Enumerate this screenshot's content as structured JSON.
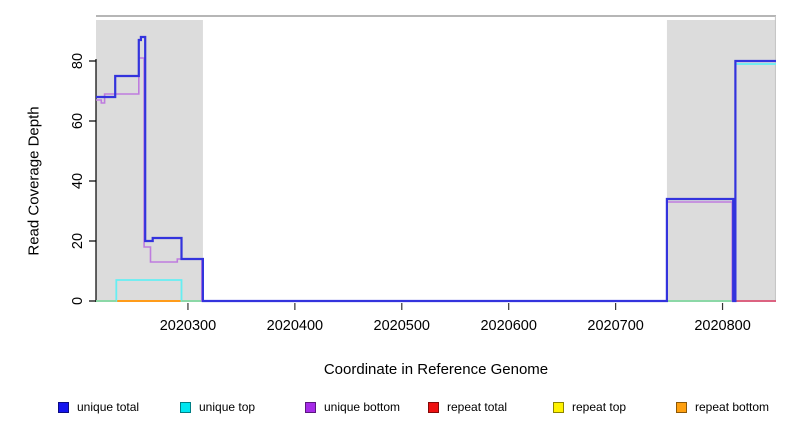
{
  "chart_data": {
    "type": "line",
    "subtype": "step-coverage",
    "title": "",
    "xlabel": "Coordinate in Reference Genome",
    "ylabel": "Read Coverage Depth",
    "xlim": [
      2020214,
      2020850
    ],
    "ylim": [
      0,
      95
    ],
    "x_ticks": [
      2020300,
      2020400,
      2020500,
      2020600,
      2020700,
      2020800
    ],
    "y_ticks": [
      0,
      20,
      40,
      60,
      80
    ],
    "grid": false,
    "shade_color": "#DCDCDC",
    "shaded_regions": [
      {
        "from": 2020214,
        "to": 2020314
      },
      {
        "from": 2020748,
        "to": 2020850
      }
    ],
    "series": [
      {
        "name": "repeat top",
        "color": "#F2E636",
        "width": 1.4,
        "paths": [
          [
            [
              2020233,
              0
            ],
            [
              2020294,
              0
            ]
          ]
        ]
      },
      {
        "name": "repeat bottom",
        "color": "#FF9C1A",
        "width": 2,
        "paths": [
          [
            [
              2020233,
              0
            ],
            [
              2020294,
              0
            ]
          ]
        ]
      },
      {
        "name": "unique top",
        "color": "#66EEF2",
        "width": 1.8,
        "paths": [
          [
            [
              2020214,
              0
            ],
            [
              2020233,
              0
            ],
            [
              2020233,
              7
            ],
            [
              2020294,
              7
            ],
            [
              2020294,
              0
            ],
            [
              2020812,
              0
            ],
            [
              2020812,
              79
            ],
            [
              2020850,
              79
            ]
          ]
        ]
      },
      {
        "name": "green zero segments",
        "color": "#90D290",
        "width": 1.6,
        "paths": [
          [
            [
              2020214,
              0
            ],
            [
              2020233,
              0
            ]
          ],
          [
            [
              2020294,
              0
            ],
            [
              2020314,
              0
            ]
          ],
          [
            [
              2020748,
              0
            ],
            [
              2020811,
              0
            ]
          ]
        ]
      },
      {
        "name": "unique bottom",
        "color": "#BE7CDE",
        "width": 1.6,
        "paths": [
          [
            [
              2020214,
              67
            ],
            [
              2020219,
              67
            ],
            [
              2020219,
              66
            ],
            [
              2020222,
              66
            ],
            [
              2020222,
              69
            ],
            [
              2020254,
              69
            ],
            [
              2020254,
              81
            ],
            [
              2020259,
              81
            ],
            [
              2020259,
              18
            ],
            [
              2020265,
              18
            ],
            [
              2020265,
              13
            ],
            [
              2020290,
              13
            ],
            [
              2020290,
              14
            ],
            [
              2020313,
              14
            ],
            [
              2020313,
              0
            ],
            [
              2020748,
              0
            ],
            [
              2020748,
              33
            ],
            [
              2020809,
              33
            ],
            [
              2020809,
              0
            ],
            [
              2020850,
              0
            ]
          ]
        ]
      },
      {
        "name": "repeat total",
        "color": "#E24B63",
        "width": 1.6,
        "paths": [
          [
            [
              2020810,
              0
            ],
            [
              2020850,
              0
            ]
          ]
        ]
      },
      {
        "name": "unique total",
        "color": "#3333DD",
        "width": 2.2,
        "paths": [
          [
            [
              2020214,
              68
            ],
            [
              2020232,
              68
            ],
            [
              2020232,
              75
            ],
            [
              2020254,
              75
            ],
            [
              2020254,
              87
            ],
            [
              2020256,
              87
            ],
            [
              2020256,
              88
            ],
            [
              2020260,
              88
            ],
            [
              2020260,
              20
            ],
            [
              2020267,
              20
            ],
            [
              2020267,
              21
            ],
            [
              2020294,
              21
            ],
            [
              2020294,
              14
            ],
            [
              2020314,
              14
            ],
            [
              2020314,
              0
            ],
            [
              2020748,
              0
            ],
            [
              2020748,
              34
            ],
            [
              2020810,
              34
            ],
            [
              2020810,
              0
            ],
            [
              2020812,
              0
            ],
            [
              2020812,
              80
            ],
            [
              2020850,
              80
            ]
          ]
        ]
      }
    ],
    "legend": {
      "position": "bottom",
      "items": [
        {
          "label": "unique total",
          "color": "#1414EE"
        },
        {
          "label": "unique top",
          "color": "#00E6F0"
        },
        {
          "label": "unique bottom",
          "color": "#A62BE8"
        },
        {
          "label": "repeat total",
          "color": "#EE1111"
        },
        {
          "label": "repeat top",
          "color": "#FFF200"
        },
        {
          "label": "repeat bottom",
          "color": "#FFA010"
        }
      ]
    }
  }
}
